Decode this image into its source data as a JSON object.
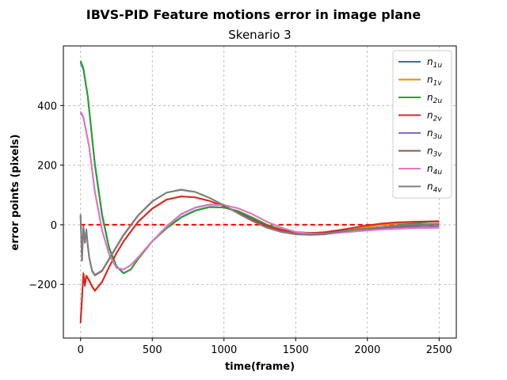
{
  "chart_data": {
    "type": "line",
    "title": "IBVS-PID Feature motions error in image plane",
    "subtitle": "Skenario 3",
    "xlabel": "time(frame)",
    "ylabel": "error points (pixels)",
    "xlim": [
      -120,
      2620
    ],
    "ylim": [
      -380,
      600
    ],
    "xticks": [
      0,
      500,
      1000,
      1500,
      2000,
      2500
    ],
    "yticks": [
      -200,
      0,
      200,
      400
    ],
    "grid": true,
    "legend_position": "top-right",
    "reference_line": {
      "y": 0,
      "x_range": [
        0,
        2500
      ],
      "color": "#ff0000",
      "style": "dashed"
    },
    "series": [
      {
        "name": "n1u",
        "base": "n",
        "sub": "1u",
        "color": "#1f77b4",
        "points": [
          [
            0,
            545
          ],
          [
            20,
            520
          ],
          [
            50,
            430
          ],
          [
            100,
            200
          ],
          [
            150,
            30
          ],
          [
            200,
            -80
          ],
          [
            250,
            -140
          ],
          [
            300,
            -163
          ],
          [
            350,
            -150
          ],
          [
            400,
            -115
          ],
          [
            500,
            -55
          ],
          [
            600,
            -10
          ],
          [
            700,
            25
          ],
          [
            800,
            48
          ],
          [
            900,
            60
          ],
          [
            1000,
            58
          ],
          [
            1100,
            45
          ],
          [
            1200,
            22
          ],
          [
            1300,
            -5
          ],
          [
            1400,
            -20
          ],
          [
            1500,
            -28
          ],
          [
            1600,
            -30
          ],
          [
            1700,
            -28
          ],
          [
            1800,
            -24
          ],
          [
            1900,
            -19
          ],
          [
            2000,
            -14
          ],
          [
            2100,
            -10
          ],
          [
            2200,
            -6
          ],
          [
            2300,
            -3
          ],
          [
            2400,
            0
          ],
          [
            2500,
            2
          ]
        ]
      },
      {
        "name": "n1v",
        "base": "n",
        "sub": "1v",
        "color": "#ff7f0e",
        "points": [
          [
            0,
            -320
          ],
          [
            10,
            -240
          ],
          [
            20,
            -160
          ],
          [
            30,
            -200
          ],
          [
            40,
            -170
          ],
          [
            60,
            -185
          ],
          [
            80,
            -205
          ],
          [
            100,
            -220
          ],
          [
            150,
            -190
          ],
          [
            200,
            -140
          ],
          [
            250,
            -95
          ],
          [
            300,
            -55
          ],
          [
            400,
            10
          ],
          [
            500,
            55
          ],
          [
            600,
            85
          ],
          [
            700,
            95
          ],
          [
            800,
            92
          ],
          [
            900,
            80
          ],
          [
            1000,
            62
          ],
          [
            1100,
            40
          ],
          [
            1200,
            15
          ],
          [
            1300,
            -5
          ],
          [
            1400,
            -20
          ],
          [
            1500,
            -28
          ],
          [
            1600,
            -30
          ],
          [
            1700,
            -28
          ],
          [
            1800,
            -22
          ],
          [
            1900,
            -14
          ],
          [
            2000,
            -6
          ],
          [
            2100,
            0
          ],
          [
            2200,
            4
          ],
          [
            2300,
            7
          ],
          [
            2400,
            9
          ],
          [
            2500,
            10
          ]
        ]
      },
      {
        "name": "n2u",
        "base": "n",
        "sub": "2u",
        "color": "#2ca02c",
        "points": [
          [
            0,
            550
          ],
          [
            20,
            525
          ],
          [
            50,
            432
          ],
          [
            100,
            205
          ],
          [
            150,
            35
          ],
          [
            200,
            -78
          ],
          [
            250,
            -138
          ],
          [
            300,
            -162
          ],
          [
            350,
            -150
          ],
          [
            400,
            -116
          ],
          [
            500,
            -56
          ],
          [
            600,
            -12
          ],
          [
            700,
            24
          ],
          [
            800,
            47
          ],
          [
            900,
            59
          ],
          [
            1000,
            58
          ],
          [
            1100,
            46
          ],
          [
            1200,
            24
          ],
          [
            1300,
            0
          ],
          [
            1400,
            -16
          ],
          [
            1500,
            -24
          ],
          [
            1600,
            -27
          ],
          [
            1700,
            -26
          ],
          [
            1800,
            -22
          ],
          [
            1900,
            -17
          ],
          [
            2000,
            -12
          ],
          [
            2100,
            -7
          ],
          [
            2200,
            -2
          ],
          [
            2300,
            3
          ],
          [
            2400,
            8
          ],
          [
            2500,
            12
          ]
        ]
      },
      {
        "name": "n2v",
        "base": "n",
        "sub": "2v",
        "color": "#d62728",
        "points": [
          [
            0,
            -330
          ],
          [
            10,
            -250
          ],
          [
            20,
            -165
          ],
          [
            30,
            -205
          ],
          [
            40,
            -172
          ],
          [
            60,
            -188
          ],
          [
            80,
            -208
          ],
          [
            100,
            -222
          ],
          [
            150,
            -192
          ],
          [
            200,
            -141
          ],
          [
            250,
            -96
          ],
          [
            300,
            -56
          ],
          [
            400,
            9
          ],
          [
            500,
            54
          ],
          [
            600,
            84
          ],
          [
            700,
            95
          ],
          [
            800,
            92
          ],
          [
            900,
            80
          ],
          [
            1000,
            62
          ],
          [
            1100,
            40
          ],
          [
            1200,
            16
          ],
          [
            1300,
            -4
          ],
          [
            1400,
            -18
          ],
          [
            1500,
            -26
          ],
          [
            1600,
            -28
          ],
          [
            1700,
            -25
          ],
          [
            1800,
            -18
          ],
          [
            1900,
            -10
          ],
          [
            2000,
            -2
          ],
          [
            2100,
            4
          ],
          [
            2200,
            8
          ],
          [
            2300,
            10
          ],
          [
            2400,
            11
          ],
          [
            2500,
            12
          ]
        ]
      },
      {
        "name": "n3u",
        "base": "n",
        "sub": "3u",
        "color": "#9467bd",
        "points": [
          [
            0,
            375
          ],
          [
            20,
            360
          ],
          [
            60,
            260
          ],
          [
            100,
            110
          ],
          [
            150,
            -20
          ],
          [
            200,
            -100
          ],
          [
            250,
            -145
          ],
          [
            300,
            -150
          ],
          [
            350,
            -135
          ],
          [
            400,
            -110
          ],
          [
            500,
            -55
          ],
          [
            600,
            -5
          ],
          [
            700,
            35
          ],
          [
            800,
            58
          ],
          [
            900,
            68
          ],
          [
            1000,
            66
          ],
          [
            1100,
            55
          ],
          [
            1200,
            35
          ],
          [
            1300,
            10
          ],
          [
            1400,
            -10
          ],
          [
            1500,
            -24
          ],
          [
            1600,
            -30
          ],
          [
            1700,
            -30
          ],
          [
            1800,
            -26
          ],
          [
            1900,
            -21
          ],
          [
            2000,
            -16
          ],
          [
            2100,
            -12
          ],
          [
            2200,
            -9
          ],
          [
            2300,
            -7
          ],
          [
            2400,
            -6
          ],
          [
            2500,
            -5
          ]
        ]
      },
      {
        "name": "n3v",
        "base": "n",
        "sub": "3v",
        "color": "#8c564b",
        "points": [
          [
            0,
            30
          ],
          [
            10,
            -120
          ],
          [
            20,
            -10
          ],
          [
            30,
            -60
          ],
          [
            40,
            -20
          ],
          [
            50,
            -70
          ],
          [
            60,
            -110
          ],
          [
            80,
            -155
          ],
          [
            100,
            -170
          ],
          [
            150,
            -155
          ],
          [
            200,
            -115
          ],
          [
            300,
            -35
          ],
          [
            400,
            30
          ],
          [
            500,
            78
          ],
          [
            600,
            108
          ],
          [
            700,
            118
          ],
          [
            800,
            110
          ],
          [
            900,
            90
          ],
          [
            1000,
            65
          ],
          [
            1100,
            38
          ],
          [
            1200,
            12
          ],
          [
            1300,
            -10
          ],
          [
            1400,
            -24
          ],
          [
            1500,
            -32
          ],
          [
            1600,
            -34
          ],
          [
            1700,
            -32
          ],
          [
            1800,
            -26
          ],
          [
            1900,
            -20
          ],
          [
            2000,
            -14
          ],
          [
            2100,
            -9
          ],
          [
            2200,
            -5
          ],
          [
            2300,
            -2
          ],
          [
            2400,
            0
          ],
          [
            2500,
            1
          ]
        ]
      },
      {
        "name": "n4u",
        "base": "n",
        "sub": "4u",
        "color": "#e377c2",
        "points": [
          [
            0,
            380
          ],
          [
            20,
            362
          ],
          [
            60,
            262
          ],
          [
            100,
            112
          ],
          [
            150,
            -18
          ],
          [
            200,
            -99
          ],
          [
            250,
            -144
          ],
          [
            300,
            -150
          ],
          [
            350,
            -136
          ],
          [
            400,
            -111
          ],
          [
            500,
            -56
          ],
          [
            600,
            -6
          ],
          [
            700,
            34
          ],
          [
            800,
            57
          ],
          [
            900,
            67
          ],
          [
            1000,
            66
          ],
          [
            1100,
            55
          ],
          [
            1200,
            35
          ],
          [
            1300,
            10
          ],
          [
            1400,
            -10
          ],
          [
            1500,
            -24
          ],
          [
            1600,
            -30
          ],
          [
            1700,
            -30
          ],
          [
            1800,
            -27
          ],
          [
            1900,
            -23
          ],
          [
            2000,
            -19
          ],
          [
            2100,
            -16
          ],
          [
            2200,
            -14
          ],
          [
            2300,
            -12
          ],
          [
            2400,
            -11
          ],
          [
            2500,
            -10
          ]
        ]
      },
      {
        "name": "n4v",
        "base": "n",
        "sub": "4v",
        "color": "#7f7f7f",
        "points": [
          [
            0,
            35
          ],
          [
            10,
            -110
          ],
          [
            20,
            -5
          ],
          [
            30,
            -55
          ],
          [
            40,
            -15
          ],
          [
            50,
            -68
          ],
          [
            60,
            -108
          ],
          [
            80,
            -153
          ],
          [
            100,
            -168
          ],
          [
            150,
            -153
          ],
          [
            200,
            -113
          ],
          [
            300,
            -33
          ],
          [
            400,
            31
          ],
          [
            500,
            79
          ],
          [
            600,
            108
          ],
          [
            700,
            117
          ],
          [
            800,
            110
          ],
          [
            900,
            90
          ],
          [
            1000,
            65
          ],
          [
            1100,
            38
          ],
          [
            1200,
            12
          ],
          [
            1300,
            -10
          ],
          [
            1400,
            -24
          ],
          [
            1500,
            -31
          ],
          [
            1600,
            -33
          ],
          [
            1700,
            -30
          ],
          [
            1800,
            -24
          ],
          [
            1900,
            -18
          ],
          [
            2000,
            -12
          ],
          [
            2100,
            -7
          ],
          [
            2200,
            -3
          ],
          [
            2300,
            0
          ],
          [
            2400,
            2
          ],
          [
            2500,
            3
          ]
        ]
      }
    ]
  }
}
